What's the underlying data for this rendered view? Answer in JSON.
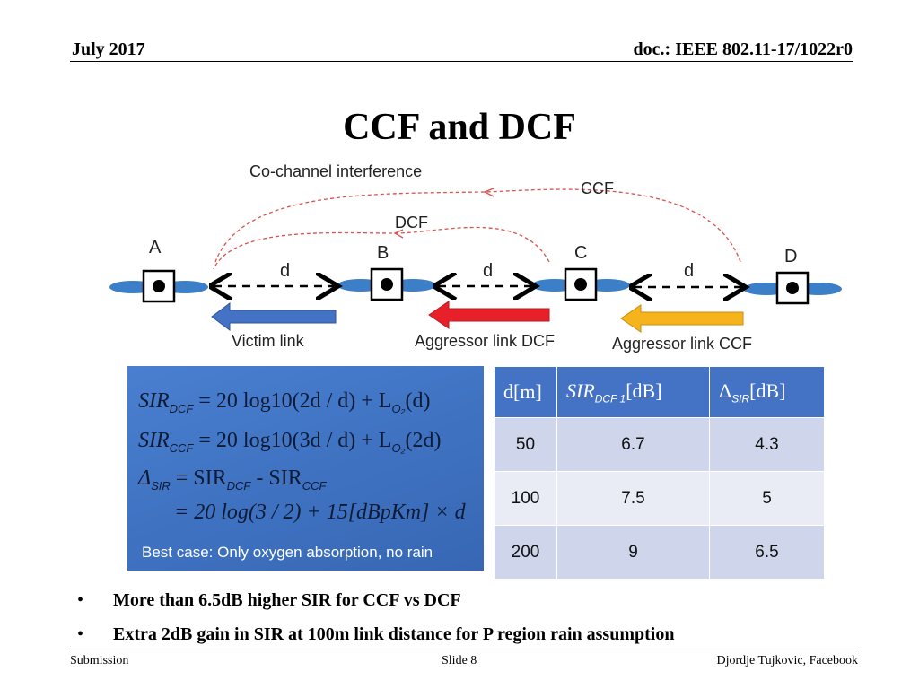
{
  "header": {
    "date": "July 2017",
    "doc": "doc.: IEEE 802.11-17/1022r0"
  },
  "title": "CCF and DCF",
  "diagram": {
    "caption": "Co-channel interference",
    "ccf_label": "CCF",
    "dcf_label": "DCF",
    "nodes": [
      "A",
      "B",
      "C",
      "D"
    ],
    "distance_label": "d",
    "links": [
      "Victim link",
      "Aggressor link DCF",
      "Aggressor link CCF"
    ],
    "colors": {
      "victim": "#4472c4",
      "dcf": "#e8202a",
      "ccf": "#f5b41c",
      "interference": "#d9534f",
      "antenna": "#3a7fc8"
    }
  },
  "formulas": {
    "line1_lhs": "SIR",
    "line1_sub": "DCF",
    "line1_rhs": "= 20 log10(2d / d) + L",
    "line1_arg": "(d)",
    "line2_lhs": "SIR",
    "line2_sub": "CCF",
    "line2_rhs": "= 20 log10(3d / d) + L",
    "line2_arg": "(2d)",
    "loss_sub": "O₂",
    "line3_delta": "Δ",
    "line3_delta_sub": "SIR",
    "line3_rhs_a": "= SIR",
    "line3_sub_a": "DCF",
    "line3_rhs_b": "- SIR",
    "line3_sub_b": "CCF",
    "line4": "= 20 log(3 / 2) + 15[dBpKm] × d",
    "note": "Best case: Only oxygen absorption, no rain"
  },
  "table": {
    "headers": [
      "d[m]",
      "SIR",
      "DCF 1",
      "[dB]",
      "Δ",
      "SIR",
      "[dB]"
    ],
    "rows": [
      [
        "50",
        "6.7",
        "4.3"
      ],
      [
        "100",
        "7.5",
        "5"
      ],
      [
        "200",
        "9",
        "6.5"
      ]
    ]
  },
  "bullets": [
    "More than 6.5dB higher SIR for CCF vs DCF",
    "Extra 2dB gain in SIR at 100m link distance for P region rain assumption"
  ],
  "footer": {
    "left": "Submission",
    "middle": "Slide 8",
    "right": "Djordje Tujkovic, Facebook"
  }
}
